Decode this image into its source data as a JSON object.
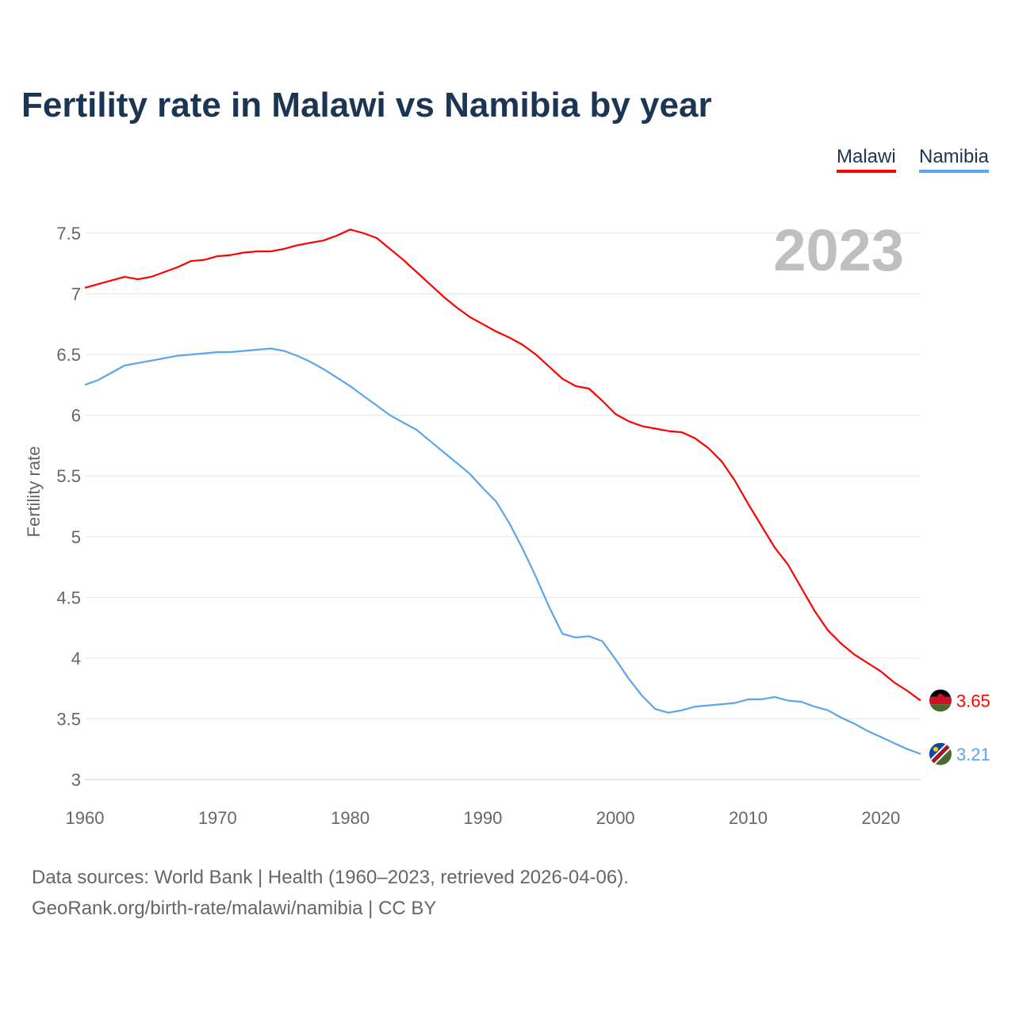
{
  "chart_data": {
    "type": "line",
    "title": "Fertility rate in Malawi vs Namibia by year",
    "ylabel": "Fertility rate",
    "xlabel": "",
    "year_label": "2023",
    "xlim": [
      1960,
      2023
    ],
    "ylim": [
      3,
      7.5
    ],
    "xticks": [
      "1960",
      "1970",
      "1980",
      "1990",
      "2000",
      "2010",
      "2020"
    ],
    "yticks": [
      "3",
      "3.5",
      "4",
      "4.5",
      "5",
      "5.5",
      "6",
      "6.5",
      "7",
      "7.5"
    ],
    "grid": true,
    "legend_placement": "top-right",
    "x_start": 1960,
    "series": [
      {
        "name": "Malawi",
        "color": "#ff0000",
        "end_label": "3.65",
        "flag": "malawi-flag",
        "values": [
          7.05,
          7.08,
          7.11,
          7.14,
          7.12,
          7.14,
          7.18,
          7.22,
          7.27,
          7.28,
          7.31,
          7.32,
          7.34,
          7.35,
          7.35,
          7.37,
          7.4,
          7.42,
          7.44,
          7.48,
          7.53,
          7.5,
          7.46,
          7.37,
          7.28,
          7.18,
          7.08,
          6.98,
          6.89,
          6.81,
          6.75,
          6.69,
          6.64,
          6.58,
          6.5,
          6.4,
          6.3,
          6.24,
          6.22,
          6.12,
          6.01,
          5.95,
          5.91,
          5.89,
          5.87,
          5.86,
          5.81,
          5.73,
          5.62,
          5.46,
          5.27,
          5.09,
          4.91,
          4.77,
          4.58,
          4.39,
          4.23,
          4.12,
          4.03,
          3.96,
          3.89,
          3.8,
          3.73,
          3.65
        ]
      },
      {
        "name": "Namibia",
        "color": "#5aa5eb",
        "end_label": "3.21",
        "flag": "namibia-flag",
        "values": [
          6.25,
          6.29,
          6.35,
          6.41,
          6.43,
          6.45,
          6.47,
          6.49,
          6.5,
          6.51,
          6.52,
          6.52,
          6.53,
          6.54,
          6.55,
          6.53,
          6.49,
          6.44,
          6.38,
          6.31,
          6.24,
          6.16,
          6.08,
          6.0,
          5.94,
          5.88,
          5.79,
          5.7,
          5.61,
          5.52,
          5.4,
          5.29,
          5.11,
          4.9,
          4.67,
          4.42,
          4.2,
          4.17,
          4.18,
          4.14,
          3.99,
          3.83,
          3.69,
          3.58,
          3.55,
          3.57,
          3.6,
          3.61,
          3.62,
          3.63,
          3.66,
          3.66,
          3.68,
          3.65,
          3.64,
          3.6,
          3.57,
          3.51,
          3.46,
          3.4,
          3.35,
          3.3,
          3.25,
          3.21
        ]
      }
    ]
  },
  "footer": {
    "line1": "Data sources: World Bank | Health (1960–2023, retrieved 2026-04-06).",
    "line2": "GeoRank.org/birth-rate/malawi/namibia | CC BY"
  }
}
